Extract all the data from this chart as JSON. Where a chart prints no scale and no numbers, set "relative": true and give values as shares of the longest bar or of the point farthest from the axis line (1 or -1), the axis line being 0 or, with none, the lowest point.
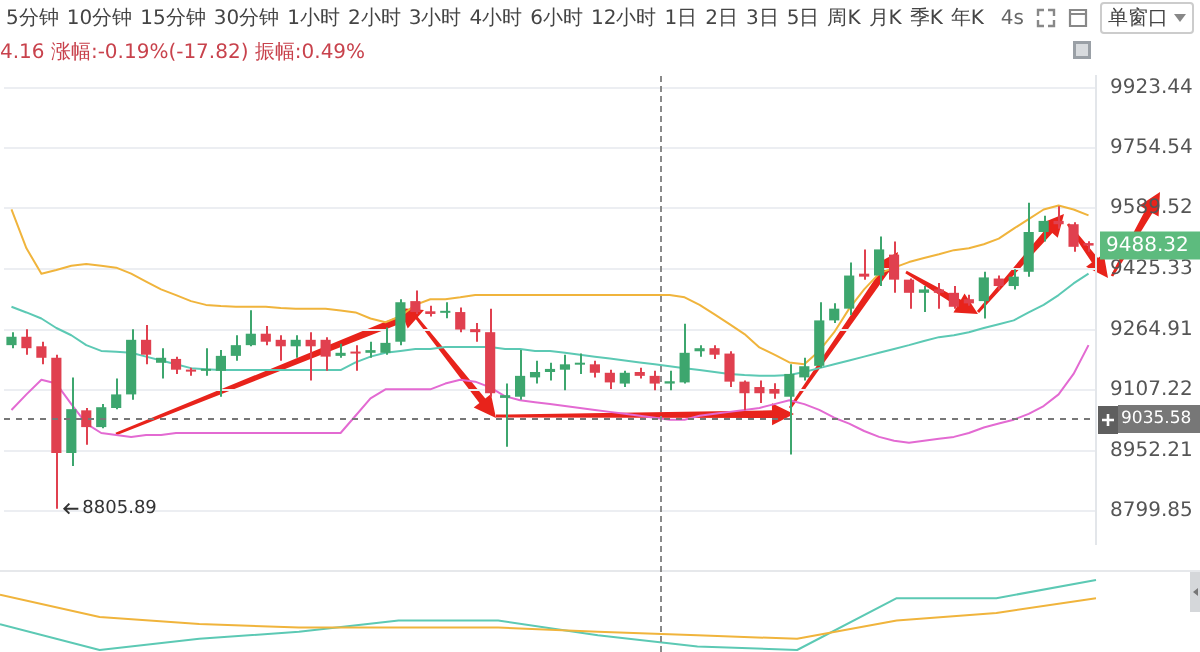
{
  "chart_data": [
    {
      "type": "candlestick",
      "subtitle": "4.16 涨幅:-0.19%(-17.82) 振幅:0.49%",
      "annotations": [
        "5分钟",
        "10分钟",
        "15分钟",
        "30分钟",
        "1小时",
        "2小时",
        "3小时",
        "4小时",
        "6小时",
        "12小时",
        "1日",
        "2日",
        "3日",
        "5日",
        "周K",
        "月K",
        "季K",
        "年K",
        "4s",
        "单窗口",
        "9488.32",
        "8805.89"
      ],
      "categories": [
        null,
        null,
        null,
        null,
        null,
        null,
        null,
        null,
        null,
        null,
        null,
        null,
        null,
        null,
        null,
        null,
        null,
        null,
        null,
        null,
        null,
        null,
        null,
        null,
        null,
        null,
        null,
        null,
        null,
        null,
        null,
        null,
        null,
        null,
        null,
        null,
        null,
        null,
        null,
        null,
        null,
        null,
        null,
        null,
        null,
        null,
        null,
        null,
        null,
        null,
        null,
        null,
        null,
        null,
        null,
        null,
        null,
        null,
        null,
        null,
        null,
        null,
        null,
        null,
        null,
        null,
        null,
        null,
        null,
        null,
        null,
        null,
        null
      ],
      "ohlc": [
        [
          9224,
          9258,
          9216,
          9246
        ],
        [
          9246,
          9266,
          9199,
          9216
        ],
        [
          9221,
          9233,
          9174,
          9191
        ],
        [
          9191,
          9199,
          8805.89,
          8946
        ],
        [
          8946,
          9140,
          8913,
          9058
        ],
        [
          9055,
          9061,
          8967,
          9012
        ],
        [
          9012,
          9071,
          9009,
          9063
        ],
        [
          9061,
          9137,
          9058,
          9096
        ],
        [
          9096,
          9266,
          9082,
          9238
        ],
        [
          9238,
          9277,
          9174,
          9199
        ],
        [
          9178,
          9216,
          9137,
          9191
        ],
        [
          9188,
          9194,
          9149,
          9160
        ],
        [
          9157,
          9165,
          9144,
          9155
        ],
        [
          9157,
          9216,
          9144,
          9159
        ],
        [
          9157,
          9211,
          9090,
          9196
        ],
        [
          9196,
          9250,
          9183,
          9224
        ],
        [
          9224,
          9316,
          9221,
          9254
        ],
        [
          9254,
          9274,
          9224,
          9233
        ],
        [
          9238,
          9250,
          9183,
          9221
        ],
        [
          9221,
          9250,
          9191,
          9238
        ],
        [
          9238,
          9258,
          9132,
          9221
        ],
        [
          9238,
          9245,
          9157,
          9194
        ],
        [
          9196,
          9228,
          9191,
          9204
        ],
        [
          9204,
          9224,
          9157,
          9202
        ],
        [
          9204,
          9233,
          9191,
          9211
        ],
        [
          9204,
          9270,
          9199,
          9230
        ],
        [
          9233,
          9345,
          9224,
          9337
        ],
        [
          9340,
          9368,
          9306,
          9311
        ],
        [
          9313,
          9328,
          9299,
          9306
        ],
        [
          9309,
          9337,
          9295,
          9313
        ],
        [
          9311,
          9323,
          9258,
          9265
        ],
        [
          9266,
          9282,
          9233,
          9258
        ],
        [
          9258,
          9320,
          9090,
          9099
        ],
        [
          9087,
          9124,
          8962,
          9094
        ],
        [
          9090,
          9211,
          9082,
          9144
        ],
        [
          9140,
          9183,
          9124,
          9154
        ],
        [
          9154,
          9178,
          9132,
          9162
        ],
        [
          9160,
          9199,
          9107,
          9174
        ],
        [
          9173,
          9202,
          9149,
          9175
        ],
        [
          9174,
          9183,
          9140,
          9152
        ],
        [
          9152,
          9160,
          9110,
          9127
        ],
        [
          9124,
          9157,
          9115,
          9152
        ],
        [
          9154,
          9165,
          9137,
          9144
        ],
        [
          9144,
          9157,
          9107,
          9124
        ],
        [
          9124,
          9157,
          9107,
          9130
        ],
        [
          9127,
          9280,
          9124,
          9204
        ],
        [
          9208,
          9224,
          9194,
          9216
        ],
        [
          9216,
          9224,
          9188,
          9199
        ],
        [
          9202,
          9208,
          9115,
          9129
        ],
        [
          9129,
          9132,
          9055,
          9099
        ],
        [
          9115,
          9132,
          9074,
          9099
        ],
        [
          9110,
          9125,
          9085,
          9098
        ],
        [
          9090,
          9174,
          8942,
          9149
        ],
        [
          9140,
          9191,
          9132,
          9169
        ],
        [
          9170,
          9337,
          9165,
          9289
        ],
        [
          9289,
          9334,
          9282,
          9320
        ],
        [
          9320,
          9443,
          9303,
          9408
        ],
        [
          9413,
          9478,
          9397,
          9405
        ],
        [
          9408,
          9513,
          9380,
          9478
        ],
        [
          9464,
          9499,
          9362,
          9397
        ],
        [
          9397,
          9400,
          9320,
          9362
        ],
        [
          9362,
          9380,
          9311,
          9371
        ],
        [
          9371,
          9388,
          9320,
          9362
        ],
        [
          9362,
          9380,
          9320,
          9325
        ],
        [
          9345,
          9357,
          9328,
          9334
        ],
        [
          9340,
          9418,
          9294,
          9403
        ],
        [
          9400,
          9408,
          9371,
          9380
        ],
        [
          9380,
          9425,
          9371,
          9405
        ],
        [
          9418,
          9604,
          9405,
          9525
        ],
        [
          9525,
          9569,
          9499,
          9555
        ],
        [
          9555,
          9595,
          9534,
          9546
        ],
        [
          9546,
          9551,
          9472,
          9485
        ],
        [
          9495,
          9500,
          9472,
          9488.32
        ]
      ],
      "colors": [
        "#3da66e",
        "#e0404f",
        "#e0404f",
        "#e0404f",
        "#3da66e",
        "#e0404f",
        "#3da66e",
        "#3da66e",
        "#3da66e",
        "#e0404f",
        "#3da66e",
        "#e0404f",
        "#e0404f",
        "#3da66e",
        "#3da66e",
        "#3da66e",
        "#3da66e",
        "#e0404f",
        "#e0404f",
        "#3da66e",
        "#e0404f",
        "#e0404f",
        "#3da66e",
        "#e0404f",
        "#3da66e",
        "#3da66e",
        "#3da66e",
        "#e0404f",
        "#e0404f",
        "#3da66e",
        "#e0404f",
        "#e0404f",
        "#e0404f",
        "#3da66e",
        "#3da66e",
        "#3da66e",
        "#3da66e",
        "#3da66e",
        "#3da66e",
        "#e0404f",
        "#e0404f",
        "#3da66e",
        "#e0404f",
        "#e0404f",
        "#3da66e",
        "#3da66e",
        "#3da66e",
        "#e0404f",
        "#e0404f",
        "#e0404f",
        "#e0404f",
        "#e0404f",
        "#3da66e",
        "#3da66e",
        "#3da66e",
        "#3da66e",
        "#3da66e",
        "#e0404f",
        "#3da66e",
        "#e0404f",
        "#e0404f",
        "#3da66e",
        "#e0404f",
        "#e0404f",
        "#e0404f",
        "#3da66e",
        "#e0404f",
        "#3da66e",
        "#3da66e",
        "#3da66e",
        "#e0404f",
        "#e0404f",
        "#e0404f"
      ],
      "series": [
        {
          "type": "line",
          "color": "#f0b43c",
          "values": [
            9586,
            9481,
            9413,
            9423,
            9434,
            9439,
            9434,
            9429,
            9413,
            9392,
            9371,
            9356,
            9340,
            9330,
            9327,
            9325,
            9325,
            9325,
            9322,
            9320,
            9320,
            9320,
            9315,
            9310,
            9294,
            9284,
            9300,
            9330,
            9345,
            9345,
            9350,
            9356,
            9356,
            9356,
            9356,
            9356,
            9356,
            9356,
            9356,
            9356,
            9356,
            9356,
            9356,
            9356,
            9356,
            9350,
            9330,
            9305,
            9279,
            9253,
            9218,
            9199,
            9179,
            9174,
            9209,
            9258,
            9320,
            9371,
            9413,
            9429,
            9444,
            9455,
            9465,
            9476,
            9481,
            9492,
            9507,
            9534,
            9560,
            9586,
            9597,
            9586,
            9570
          ]
        },
        {
          "type": "line",
          "color": "#5cc9b4",
          "values": [
            9325,
            9310,
            9294,
            9269,
            9250,
            9224,
            9209,
            9207,
            9204,
            9194,
            9184,
            9174,
            9164,
            9161,
            9159,
            9159,
            9159,
            9159,
            9159,
            9159,
            9159,
            9159,
            9159,
            9179,
            9194,
            9204,
            9209,
            9214,
            9214,
            9219,
            9219,
            9219,
            9219,
            9214,
            9214,
            9209,
            9209,
            9204,
            9199,
            9194,
            9189,
            9184,
            9179,
            9174,
            9169,
            9164,
            9159,
            9154,
            9149,
            9146,
            9144,
            9144,
            9146,
            9154,
            9164,
            9174,
            9184,
            9194,
            9204,
            9214,
            9224,
            9235,
            9245,
            9250,
            9258,
            9269,
            9279,
            9289,
            9310,
            9330,
            9356,
            9387,
            9413
          ]
        },
        {
          "type": "line",
          "color": "#e36ad2",
          "values": [
            9056,
            9096,
            9134,
            9124,
            9071,
            9021,
            8997,
            8992,
            8987,
            8992,
            8992,
            8997,
            8997,
            8997,
            8997,
            8997,
            8997,
            8997,
            8997,
            8997,
            8997,
            8997,
            8997,
            9041,
            9086,
            9109,
            9109,
            9109,
            9109,
            9124,
            9134,
            9129,
            9114,
            9091,
            9081,
            9076,
            9071,
            9066,
            9061,
            9056,
            9051,
            9046,
            9041,
            9036,
            9031,
            9031,
            9041,
            9046,
            9051,
            9056,
            9061,
            9071,
            9081,
            9071,
            9056,
            9036,
            9021,
            9002,
            8987,
            8977,
            8972,
            8977,
            8982,
            8987,
            8997,
            9011,
            9021,
            9031,
            9046,
            9066,
            9096,
            9149,
            9224
          ]
        }
      ],
      "log": "y",
      "ylim": [
        8718,
        9956
      ],
      "yticks": [
        8799.85,
        8952.21,
        9107.22,
        9264.91,
        9425.33,
        9589.52,
        9754.54,
        9923.44
      ],
      "grid": "y",
      "marker": "none",
      "tick_labels": "y",
      "ref_lines": [
        {
          "axis": "y",
          "value": 9035.58,
          "label": "9035.58",
          "color": "#777777",
          "line_style": "dashed"
        }
      ]
    },
    {
      "type": "line",
      "relative": true,
      "categories": [
        null,
        null,
        null,
        null,
        null,
        null,
        null,
        null,
        null,
        null,
        null,
        null
      ],
      "series": [
        {
          "color": "#f0b43c",
          "values": [
            0.79,
            0.47,
            0.37,
            0.32,
            0.32,
            0.32,
            0.26,
            0.21,
            0.16,
            0.42,
            0.53,
            0.74
          ]
        },
        {
          "color": "#5cc9b4",
          "values": [
            0.37,
            0,
            0.16,
            0.26,
            0.42,
            0.42,
            0.21,
            0.05,
            0,
            0.74,
            0.74,
            1
          ]
        }
      ],
      "marker": "none",
      "tick_labels": false
    }
  ]
}
